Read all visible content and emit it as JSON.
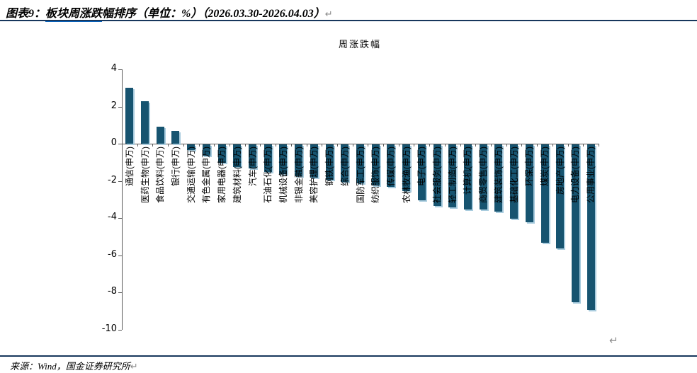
{
  "doc": {
    "figure_label": "图表9：",
    "title_underlined": "板块周涨跌",
    "title_rest": "幅排序（单位：%）（2026.03.30-2026.04.03）",
    "return_mark": "↵",
    "source": "来源：Wind，国金证券研究所",
    "source_return_mark": "↵",
    "anchor_mark": "↵"
  },
  "colors": {
    "bar": "#175470",
    "bar_edge": "#A9CCDE",
    "rule_navy": "#17375D",
    "hyperlink_underline": "#0563C1",
    "axis_gray": "#595959",
    "mark_gray": "#8A8A8A"
  },
  "chart_data": {
    "type": "bar",
    "title": "周涨跌幅",
    "unit": "%",
    "xlabel": "",
    "ylabel": "",
    "ylim": [
      -10,
      4
    ],
    "yticks": [
      4,
      2,
      0,
      -2,
      -4,
      -6,
      -8,
      -10
    ],
    "grid": false,
    "legend_position": "none",
    "categories": [
      "通信(申万)",
      "医药生物(申万)",
      "食品饮料(申万)",
      "银行(申万)",
      "交通运输(申万)",
      "有色金属(申万)",
      "家用电器(申万)",
      "建筑材料(申万)",
      "汽车(申万)",
      "石油石化(申万)",
      "机械设备(申万)",
      "非银金融(申万)",
      "美容护理(申万)",
      "钢铁(申万)",
      "综合(申万)",
      "国防军工(申万)",
      "纺织服饰(申万)",
      "传媒(申万)",
      "农林牧渔(申万)",
      "电子(申万)",
      "社会服务(申万)",
      "轻工制造(申万)",
      "计算机(申万)",
      "商贸零售(申万)",
      "建筑装饰(申万)",
      "基础化工(申万)",
      "环保(申万)",
      "煤炭(申万)",
      "房地产(申万)",
      "电力设备(申万)",
      "公用事业(申万)"
    ],
    "values": [
      3.0,
      2.3,
      0.9,
      0.7,
      -0.3,
      -0.6,
      -1.0,
      -1.2,
      -1.3,
      -1.5,
      -1.6,
      -1.7,
      -1.8,
      -1.9,
      -2.0,
      -2.1,
      -2.2,
      -2.3,
      -2.5,
      -3.0,
      -3.3,
      -3.4,
      -3.5,
      -3.5,
      -3.6,
      -4.0,
      -4.2,
      -5.3,
      -5.6,
      -8.5,
      -8.9
    ]
  }
}
